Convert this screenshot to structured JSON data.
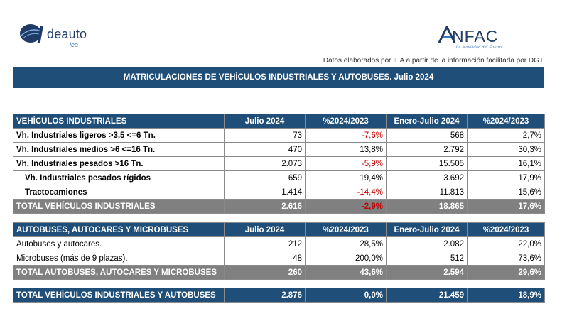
{
  "header": {
    "left_logo": {
      "word": "deauto",
      "sub": "iea",
      "icon": "ideauto-globe-icon"
    },
    "right_logo": {
      "word": "NFAC",
      "tagline": "La Movilidad del Futuro",
      "icon": "anfac-a-icon"
    },
    "source_note": "Datos elaborados por IEA a partir de la información facilitada por DGT",
    "title": "MATRICULACIONES DE VEHÍCULOS INDUSTRIALES Y AUTOBUSES.  Julio 2024"
  },
  "industrial": {
    "headers": [
      "VEHÍCULOS INDUSTRIALES",
      "Julio 2024",
      "%2024/2023",
      "Enero-Julio 2024",
      "%2024/2023"
    ],
    "rows": [
      {
        "label": "Vh. Industriales ligeros >3,5 <=6 Tn.",
        "julio": "73",
        "pct1": "-7,6%",
        "ene_jul": "568",
        "pct2": "2,7%"
      },
      {
        "label": "Vh. Industriales medios >6  <=16 Tn.",
        "julio": "470",
        "pct1": "13,8%",
        "ene_jul": "2.792",
        "pct2": "30,3%"
      },
      {
        "label": "Vh. Industriales  pesados >16 Tn.",
        "julio": "2.073",
        "pct1": "-5,9%",
        "ene_jul": "15.505",
        "pct2": "16,1%"
      },
      {
        "label": "Vh. Industriales pesados rígidos",
        "julio": "659",
        "pct1": "19,4%",
        "ene_jul": "3.692",
        "pct2": "17,9%"
      },
      {
        "label": "Tractocamiones",
        "julio": "1.414",
        "pct1": "-14,4%",
        "ene_jul": "11.813",
        "pct2": "15,6%"
      }
    ],
    "total": {
      "label": "TOTAL VEHÍCULOS INDUSTRIALES",
      "julio": "2.616",
      "pct1": "-2,9%",
      "ene_jul": "18.865",
      "pct2": "17,6%"
    }
  },
  "buses": {
    "headers": [
      "AUTOBUSES, AUTOCARES Y MICROBUSES",
      "Julio 2024",
      "%2024/2023",
      "Enero-Julio 2024",
      "%2024/2023"
    ],
    "rows": [
      {
        "label": "Autobuses y autocares.",
        "julio": "212",
        "pct1": "28,5%",
        "ene_jul": "2.082",
        "pct2": "22,0%"
      },
      {
        "label": "Microbuses (más de 9 plazas).",
        "julio": "48",
        "pct1": "200,0%",
        "ene_jul": "512",
        "pct2": "73,6%"
      }
    ],
    "total": {
      "label": "TOTAL AUTOBUSES, AUTOCARES Y MICROBUSES",
      "julio": "260",
      "pct1": "43,6%",
      "ene_jul": "2.594",
      "pct2": "29,6%"
    }
  },
  "grand_total": {
    "label": "TOTAL VEHÍCULOS INDUSTRIALES Y AUTOBUSES",
    "julio": "2.876",
    "pct1": "0,0%",
    "ene_jul": "21.459",
    "pct2": "18,9%"
  },
  "colors": {
    "header_blue": "#1f4e79",
    "total_gray": "#808080",
    "negative_red": "#c00000"
  }
}
